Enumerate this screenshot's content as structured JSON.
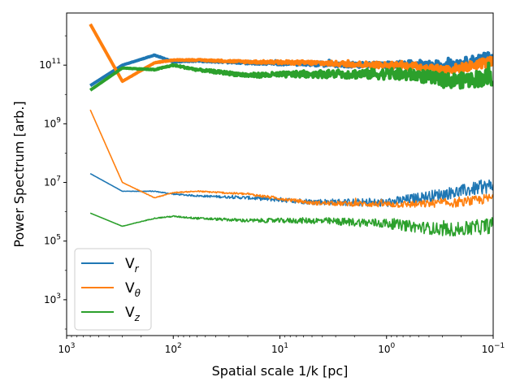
{
  "chart_data": {
    "type": "line",
    "xscale": "log",
    "yscale": "log",
    "x_inverted": true,
    "xlabel": "Spatial scale 1/k [pc]",
    "ylabel": "Power Spectrum [arb.]",
    "xlim": [
      1000,
      0.1
    ],
    "ylim": [
      60,
      6000000000000.0
    ],
    "xticks": [
      {
        "value": 1000,
        "base": "10",
        "exp": "3"
      },
      {
        "value": 100,
        "base": "10",
        "exp": "2"
      },
      {
        "value": 10,
        "base": "10",
        "exp": "1"
      },
      {
        "value": 1,
        "base": "10",
        "exp": "0"
      },
      {
        "value": 0.1,
        "base": "10",
        "exp": "−1"
      }
    ],
    "yticks": [
      {
        "value": 1000,
        "base": "10",
        "exp": "3"
      },
      {
        "value": 100000,
        "base": "10",
        "exp": "5"
      },
      {
        "value": 10000000,
        "base": "10",
        "exp": "7"
      },
      {
        "value": 1000000000,
        "base": "10",
        "exp": "9"
      },
      {
        "value": 100000000000,
        "base": "10",
        "exp": "11"
      }
    ],
    "legend": {
      "location": "lower-left",
      "entries": [
        {
          "base": "V",
          "sub": "r",
          "color": "#1f77b4"
        },
        {
          "base": "V",
          "sub": "θ",
          "color": "#ff7f0e"
        },
        {
          "base": "V",
          "sub": "z",
          "color": "#2ca02c"
        }
      ]
    },
    "series": [
      {
        "name": "Vr (thick)",
        "component": "r",
        "color": "#1f77b4",
        "width": 4,
        "x": [
          600,
          300,
          150,
          100,
          60,
          20,
          5,
          1,
          0.5,
          0.3,
          0.2,
          0.1
        ],
        "y": [
          20000000000.0,
          100000000000.0,
          220000000000.0,
          130000000000.0,
          140000000000.0,
          120000000000.0,
          110000000000.0,
          100000000000.0,
          110000000000.0,
          100000000000.0,
          120000000000.0,
          200000000000.0
        ],
        "noise": 0.35
      },
      {
        "name": "Vθ (thick)",
        "component": "θ",
        "color": "#ff7f0e",
        "width": 4,
        "x": [
          600,
          300,
          150,
          100,
          60,
          20,
          5,
          1,
          0.5,
          0.3,
          0.2,
          0.1
        ],
        "y": [
          2500000000000.0,
          28000000000.0,
          120000000000.0,
          150000000000.0,
          150000000000.0,
          130000000000.0,
          120000000000.0,
          100000000000.0,
          90000000000.0,
          70000000000.0,
          80000000000.0,
          140000000000.0
        ],
        "noise": 0.35
      },
      {
        "name": "Vz (thick)",
        "component": "z",
        "color": "#2ca02c",
        "width": 4,
        "x": [
          600,
          300,
          150,
          100,
          60,
          20,
          5,
          1,
          0.5,
          0.3,
          0.2,
          0.1
        ],
        "y": [
          14000000000.0,
          80000000000.0,
          70000000000.0,
          100000000000.0,
          70000000000.0,
          45000000000.0,
          50000000000.0,
          50000000000.0,
          45000000000.0,
          30000000000.0,
          30000000000.0,
          40000000000.0
        ],
        "noise": 0.6
      },
      {
        "name": "Vr (thin)",
        "component": "r",
        "color": "#1f77b4",
        "width": 1.6,
        "x": [
          600,
          300,
          150,
          100,
          60,
          20,
          5,
          1,
          0.5,
          0.3,
          0.2,
          0.1
        ],
        "y": [
          20000000.0,
          5000000.0,
          5000000.0,
          4000000.0,
          3500000.0,
          3000000.0,
          2200000.0,
          2000000.0,
          3000000.0,
          4000000.0,
          5000000.0,
          8000000.0
        ],
        "noise": 0.5
      },
      {
        "name": "Vθ (thin)",
        "component": "θ",
        "color": "#ff7f0e",
        "width": 1.6,
        "x": [
          600,
          300,
          150,
          100,
          60,
          20,
          5,
          1,
          0.5,
          0.3,
          0.2,
          0.1
        ],
        "y": [
          3000000000.0,
          10000000.0,
          3000000.0,
          4500000.0,
          5000000.0,
          4000000.0,
          2000000.0,
          1800000.0,
          1800000.0,
          2000000.0,
          2000000.0,
          3000000.0
        ],
        "noise": 0.35
      },
      {
        "name": "Vz (thin)",
        "component": "z",
        "color": "#2ca02c",
        "width": 1.6,
        "x": [
          600,
          300,
          150,
          100,
          60,
          20,
          5,
          1,
          0.5,
          0.3,
          0.2,
          0.1
        ],
        "y": [
          900000.0,
          320000.0,
          600000.0,
          700000.0,
          600000.0,
          500000.0,
          500000.0,
          400000.0,
          300000.0,
          250000.0,
          250000.0,
          350000.0
        ],
        "noise": 0.55
      }
    ]
  }
}
